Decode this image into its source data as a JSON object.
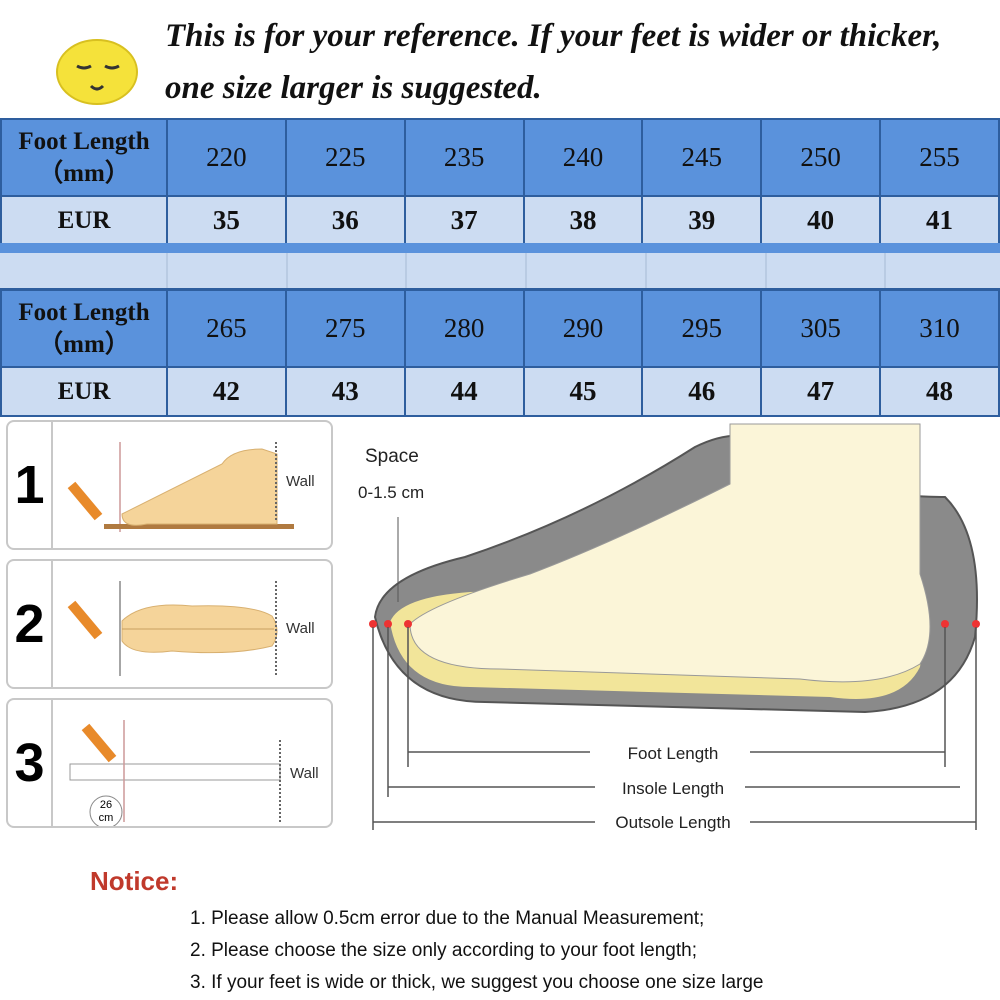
{
  "header": {
    "note": "This is for your reference. If your feet is wider or thicker, one size larger is suggested."
  },
  "table": {
    "row_label_length": "Foot Length",
    "row_label_unit": "（mm）",
    "row_label_eur": "EUR",
    "top": {
      "lengths": [
        "220",
        "225",
        "235",
        "240",
        "245",
        "250",
        "255"
      ],
      "eur": [
        "35",
        "36",
        "37",
        "38",
        "39",
        "40",
        "41"
      ]
    },
    "bottom": {
      "lengths": [
        "265",
        "275",
        "280",
        "290",
        "295",
        "305",
        "310"
      ],
      "eur": [
        "42",
        "43",
        "44",
        "45",
        "46",
        "47",
        "48"
      ]
    }
  },
  "steps": [
    {
      "number": "1",
      "wall": "Wall"
    },
    {
      "number": "2",
      "wall": "Wall"
    },
    {
      "number": "3",
      "wall": "Wall",
      "ruler_reading": "26",
      "ruler_unit": "cm"
    }
  ],
  "diagram": {
    "space_label": "Space",
    "space_value": "0-1.5 cm",
    "foot_length": "Foot Length",
    "insole_length": "Insole Length",
    "outsole_length": "Outsole Length"
  },
  "notice": {
    "title": "Notice:",
    "items": [
      "1. Please allow 0.5cm error due to the Manual Measurement;",
      "2. Please choose the size only according to your foot length;",
      "3. If your feet is wide or thick, we suggest you choose one size large"
    ]
  },
  "colors": {
    "header_blue": "#5a92dc",
    "light_blue": "#ccdcf2",
    "notice_red": "#c0392b"
  }
}
